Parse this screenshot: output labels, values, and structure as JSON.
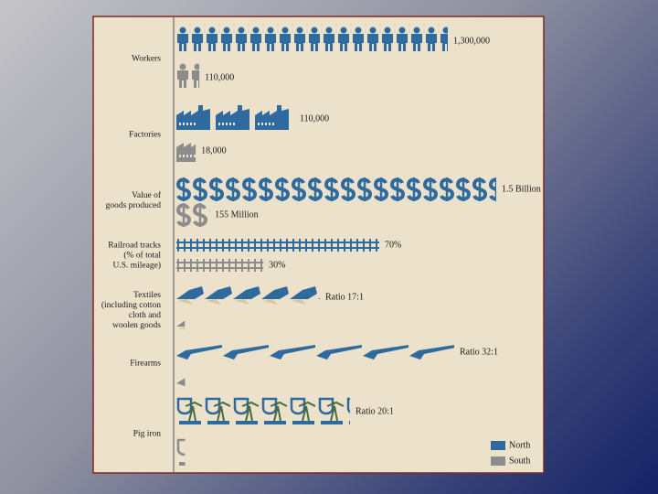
{
  "chart_data": {
    "type": "pictograph",
    "categories": [
      "Workers",
      "Factories",
      "Value of\ngoods produced",
      "Railroad tracks\n(% of total\nU.S. mileage)",
      "Textiles\n(including cotton\ncloth and\nwoolen goods",
      "Firearms",
      "Pig iron"
    ],
    "series": [
      {
        "name": "North",
        "color": "#2f6a9e",
        "values": [
          1300000,
          110000,
          1500000000,
          70,
          17,
          32,
          20
        ],
        "value_labels": [
          "1,300,000",
          "110,000",
          "1.5 Billion",
          "70%",
          "Ratio 17:1",
          "Ratio 32:1",
          "Ratio 20:1"
        ]
      },
      {
        "name": "South",
        "color": "#8c8c8c",
        "values": [
          110000,
          18000,
          155000000,
          30,
          1,
          1,
          1
        ],
        "value_labels": [
          "110,000",
          "18,000",
          "155 Million",
          "30%",
          null,
          null,
          null
        ]
      }
    ]
  }
}
